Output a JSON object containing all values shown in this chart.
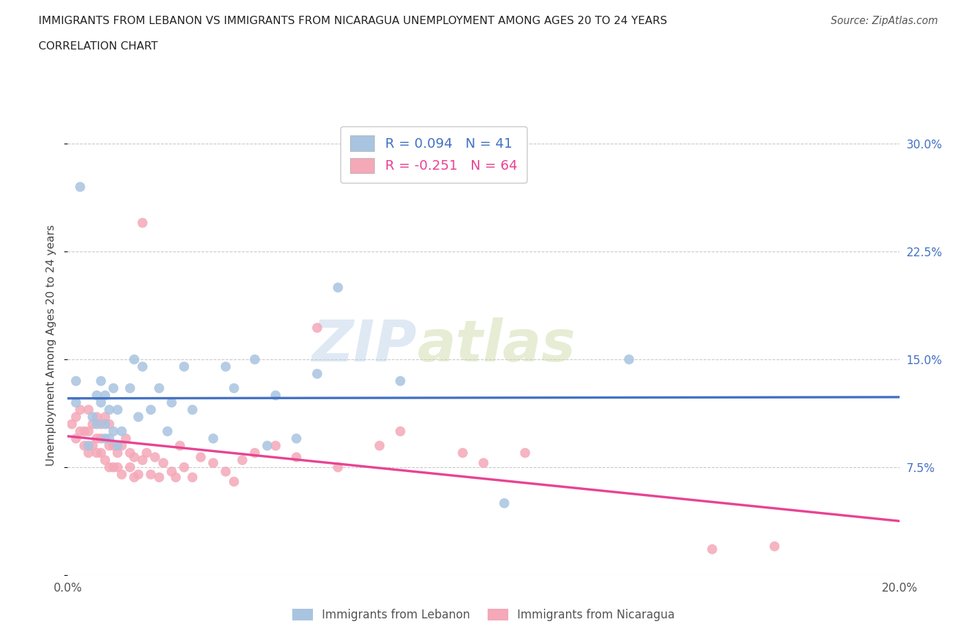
{
  "title_line1": "IMMIGRANTS FROM LEBANON VS IMMIGRANTS FROM NICARAGUA UNEMPLOYMENT AMONG AGES 20 TO 24 YEARS",
  "title_line2": "CORRELATION CHART",
  "source": "Source: ZipAtlas.com",
  "ylabel": "Unemployment Among Ages 20 to 24 years",
  "xlim": [
    0.0,
    0.2
  ],
  "ylim": [
    0.0,
    0.32
  ],
  "xticks": [
    0.0,
    0.05,
    0.1,
    0.15,
    0.2
  ],
  "xticklabels": [
    "0.0%",
    "",
    "",
    "",
    "20.0%"
  ],
  "yticks": [
    0.0,
    0.075,
    0.15,
    0.225,
    0.3
  ],
  "yticklabels": [
    "",
    "7.5%",
    "15.0%",
    "22.5%",
    "30.0%"
  ],
  "grid_color": "#c8c8c8",
  "background_color": "#ffffff",
  "lebanon_color": "#a8c4e0",
  "nicaragua_color": "#f4a8b8",
  "lebanon_line_color": "#4472c4",
  "nicaragua_line_color": "#e84393",
  "lebanon_R": 0.094,
  "lebanon_N": 41,
  "nicaragua_R": -0.251,
  "nicaragua_N": 64,
  "watermark_zip": "ZIP",
  "watermark_atlas": "atlas",
  "legend_label_lebanon": "Immigrants from Lebanon",
  "legend_label_nicaragua": "Immigrants from Nicaragua",
  "lebanon_x": [
    0.002,
    0.002,
    0.003,
    0.005,
    0.006,
    0.007,
    0.007,
    0.008,
    0.008,
    0.009,
    0.009,
    0.009,
    0.01,
    0.01,
    0.011,
    0.011,
    0.012,
    0.012,
    0.013,
    0.015,
    0.016,
    0.017,
    0.018,
    0.02,
    0.022,
    0.024,
    0.025,
    0.028,
    0.03,
    0.035,
    0.038,
    0.04,
    0.045,
    0.048,
    0.05,
    0.055,
    0.06,
    0.065,
    0.08,
    0.105,
    0.135
  ],
  "lebanon_y": [
    0.12,
    0.135,
    0.27,
    0.09,
    0.11,
    0.105,
    0.125,
    0.12,
    0.135,
    0.095,
    0.105,
    0.125,
    0.095,
    0.115,
    0.1,
    0.13,
    0.09,
    0.115,
    0.1,
    0.13,
    0.15,
    0.11,
    0.145,
    0.115,
    0.13,
    0.1,
    0.12,
    0.145,
    0.115,
    0.095,
    0.145,
    0.13,
    0.15,
    0.09,
    0.125,
    0.095,
    0.14,
    0.2,
    0.135,
    0.05,
    0.15
  ],
  "nicaragua_x": [
    0.001,
    0.002,
    0.002,
    0.003,
    0.003,
    0.004,
    0.004,
    0.005,
    0.005,
    0.005,
    0.006,
    0.006,
    0.007,
    0.007,
    0.007,
    0.008,
    0.008,
    0.008,
    0.009,
    0.009,
    0.01,
    0.01,
    0.01,
    0.011,
    0.011,
    0.012,
    0.012,
    0.013,
    0.013,
    0.014,
    0.015,
    0.015,
    0.016,
    0.016,
    0.017,
    0.018,
    0.018,
    0.019,
    0.02,
    0.021,
    0.022,
    0.023,
    0.025,
    0.026,
    0.027,
    0.028,
    0.03,
    0.032,
    0.035,
    0.038,
    0.04,
    0.042,
    0.045,
    0.05,
    0.055,
    0.06,
    0.065,
    0.075,
    0.08,
    0.095,
    0.1,
    0.11,
    0.155,
    0.17
  ],
  "nicaragua_y": [
    0.105,
    0.095,
    0.11,
    0.1,
    0.115,
    0.09,
    0.1,
    0.085,
    0.1,
    0.115,
    0.09,
    0.105,
    0.085,
    0.095,
    0.11,
    0.085,
    0.095,
    0.105,
    0.08,
    0.11,
    0.075,
    0.09,
    0.105,
    0.075,
    0.09,
    0.075,
    0.085,
    0.07,
    0.09,
    0.095,
    0.075,
    0.085,
    0.068,
    0.082,
    0.07,
    0.08,
    0.245,
    0.085,
    0.07,
    0.082,
    0.068,
    0.078,
    0.072,
    0.068,
    0.09,
    0.075,
    0.068,
    0.082,
    0.078,
    0.072,
    0.065,
    0.08,
    0.085,
    0.09,
    0.082,
    0.172,
    0.075,
    0.09,
    0.1,
    0.085,
    0.078,
    0.085,
    0.018,
    0.02
  ]
}
